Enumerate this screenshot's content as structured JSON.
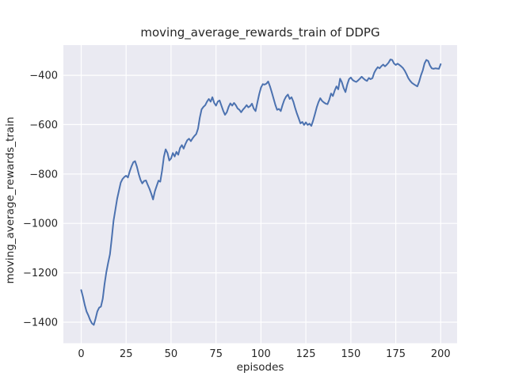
{
  "chart_data": {
    "type": "line",
    "title": "moving_average_rewards_train of DDPG",
    "xlabel": "episodes",
    "ylabel": "moving_average_rewards_train",
    "x_ticks": [
      0,
      25,
      50,
      75,
      100,
      125,
      150,
      175,
      200
    ],
    "y_ticks": [
      -1400,
      -1200,
      -1000,
      -800,
      -600,
      -400
    ],
    "xlim": [
      -9.9,
      209.1
    ],
    "ylim": [
      -1485,
      -278
    ],
    "grid": true,
    "legend": null,
    "style": {
      "axes_background": "#eaeaf2",
      "grid_color": "#ffffff",
      "line_color": "#4c72b0",
      "text_color": "#262626"
    },
    "series": [
      {
        "name": "moving_average_rewards_train",
        "x_start": 0,
        "x_step": 1,
        "y": [
          -1270,
          -1297,
          -1330,
          -1357,
          -1372,
          -1391,
          -1405,
          -1411,
          -1386,
          -1356,
          -1341,
          -1337,
          -1305,
          -1245,
          -1198,
          -1160,
          -1125,
          -1062,
          -990,
          -945,
          -900,
          -868,
          -835,
          -820,
          -812,
          -807,
          -814,
          -790,
          -769,
          -752,
          -748,
          -770,
          -800,
          -824,
          -838,
          -828,
          -826,
          -843,
          -860,
          -880,
          -903,
          -870,
          -848,
          -827,
          -831,
          -786,
          -730,
          -700,
          -715,
          -745,
          -737,
          -715,
          -729,
          -710,
          -722,
          -694,
          -683,
          -697,
          -678,
          -663,
          -657,
          -667,
          -655,
          -646,
          -638,
          -616,
          -572,
          -538,
          -528,
          -521,
          -507,
          -496,
          -507,
          -489,
          -512,
          -523,
          -507,
          -502,
          -523,
          -544,
          -560,
          -550,
          -528,
          -514,
          -523,
          -512,
          -521,
          -534,
          -540,
          -550,
          -539,
          -531,
          -521,
          -530,
          -525,
          -515,
          -535,
          -545,
          -510,
          -478,
          -450,
          -436,
          -438,
          -434,
          -425,
          -445,
          -468,
          -494,
          -520,
          -540,
          -536,
          -545,
          -521,
          -500,
          -486,
          -478,
          -496,
          -489,
          -507,
          -532,
          -555,
          -575,
          -595,
          -589,
          -601,
          -591,
          -601,
          -596,
          -605,
          -584,
          -558,
          -530,
          -509,
          -493,
          -504,
          -510,
          -515,
          -517,
          -500,
          -474,
          -484,
          -462,
          -445,
          -457,
          -414,
          -428,
          -452,
          -468,
          -438,
          -416,
          -409,
          -419,
          -424,
          -427,
          -421,
          -414,
          -406,
          -413,
          -419,
          -423,
          -411,
          -416,
          -412,
          -390,
          -377,
          -367,
          -372,
          -363,
          -357,
          -364,
          -357,
          -349,
          -336,
          -338,
          -352,
          -358,
          -353,
          -358,
          -364,
          -371,
          -382,
          -396,
          -412,
          -423,
          -431,
          -436,
          -441,
          -445,
          -426,
          -400,
          -380,
          -352,
          -338,
          -342,
          -360,
          -372,
          -374,
          -372,
          -373,
          -374,
          -355
        ]
      }
    ]
  }
}
